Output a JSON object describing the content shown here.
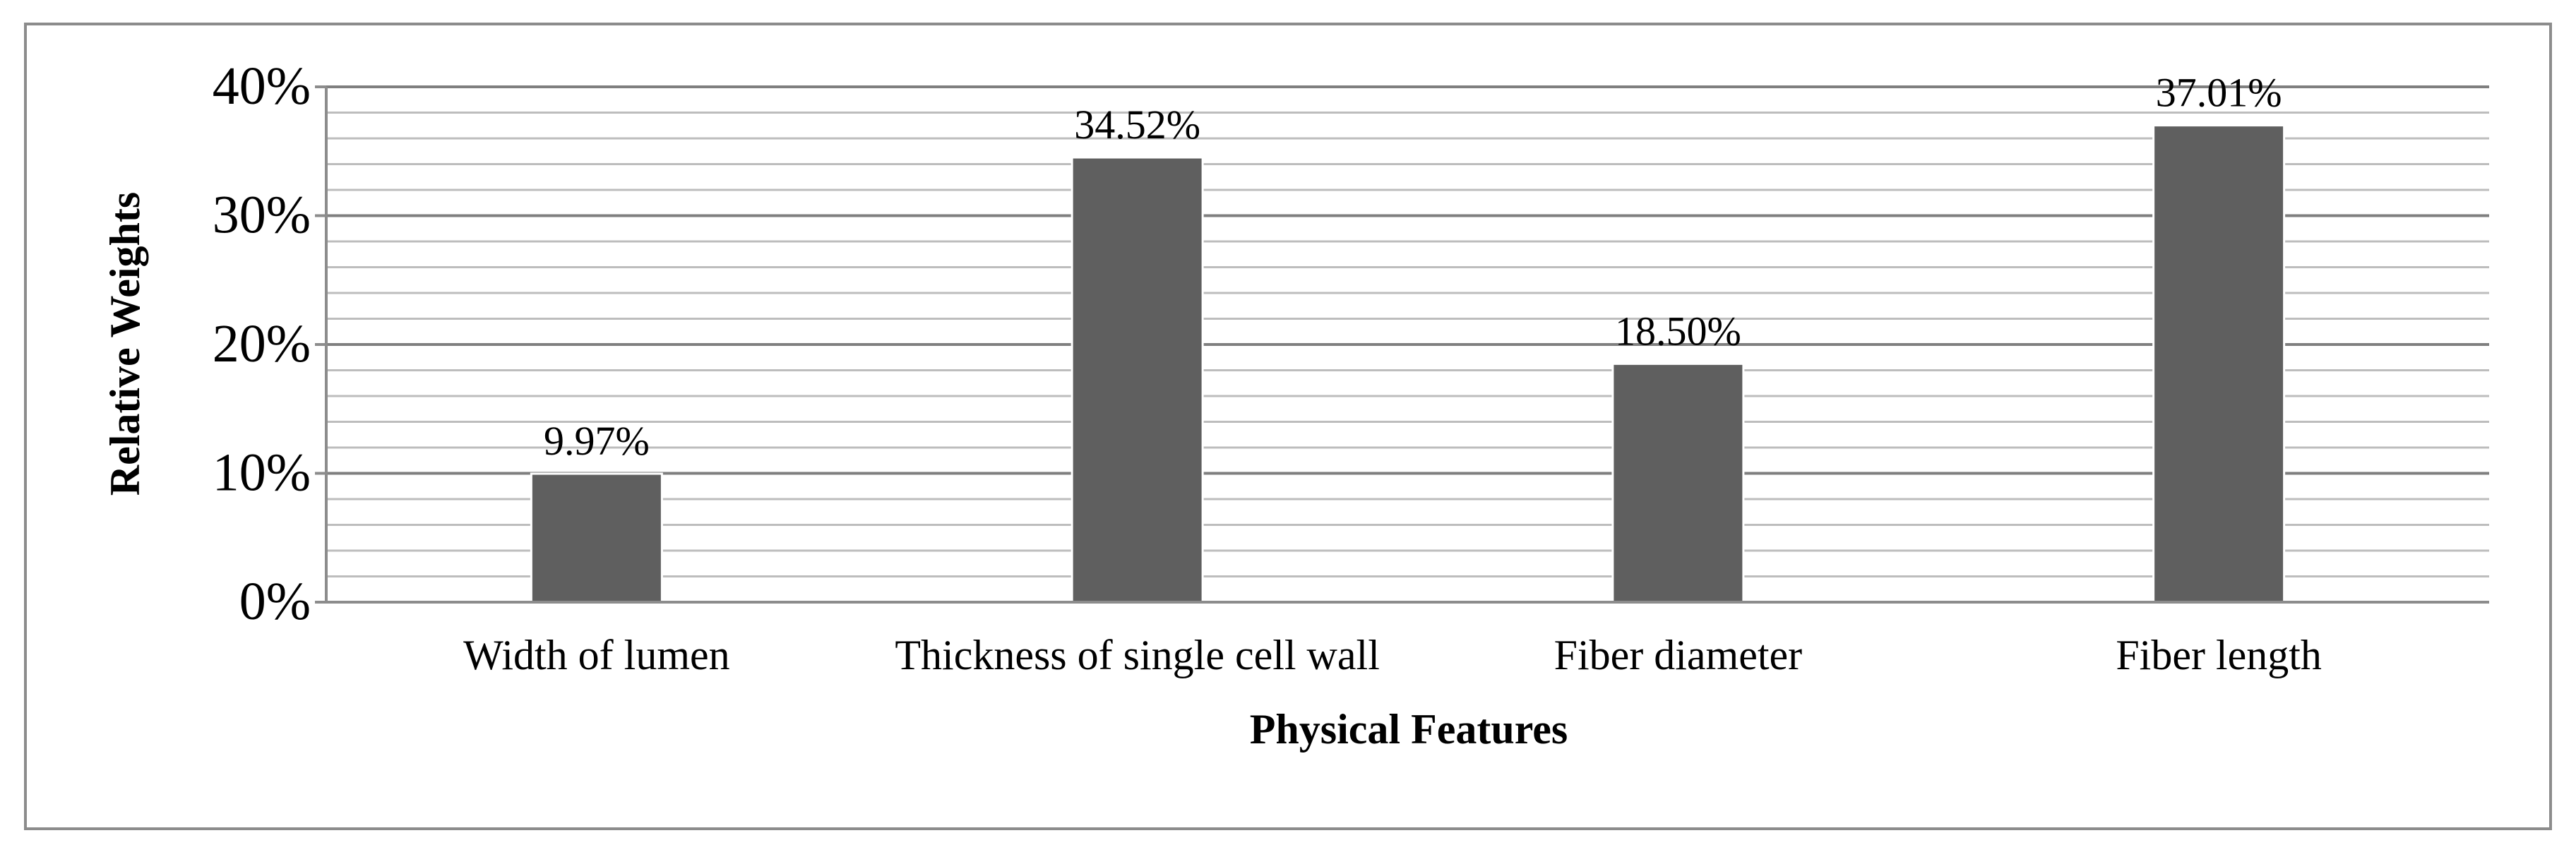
{
  "chart_data": {
    "type": "bar",
    "categories": [
      "Width of lumen",
      "Thickness of single cell wall",
      "Fiber diameter",
      "Fiber length"
    ],
    "values": [
      9.97,
      34.52,
      18.5,
      37.01
    ],
    "data_labels": [
      "9.97%",
      "34.52%",
      "18.50%",
      "37.01%"
    ],
    "xlabel": "Physical Features",
    "ylabel": "Relative Weights",
    "ylim": [
      0,
      40
    ],
    "y_ticks": [
      0,
      10,
      20,
      30,
      40
    ],
    "y_tick_labels": [
      "0%",
      "10%",
      "20%",
      "30%",
      "40%"
    ],
    "minor_grid_step": 2,
    "grid": true,
    "legend": "none",
    "colors": {
      "bar": "#5f5f5f",
      "major_grid": "#7f7f7f",
      "minor_grid": "#bdbdbd",
      "axis": "#8c8c8c",
      "frame": "#8c8c8c"
    }
  }
}
